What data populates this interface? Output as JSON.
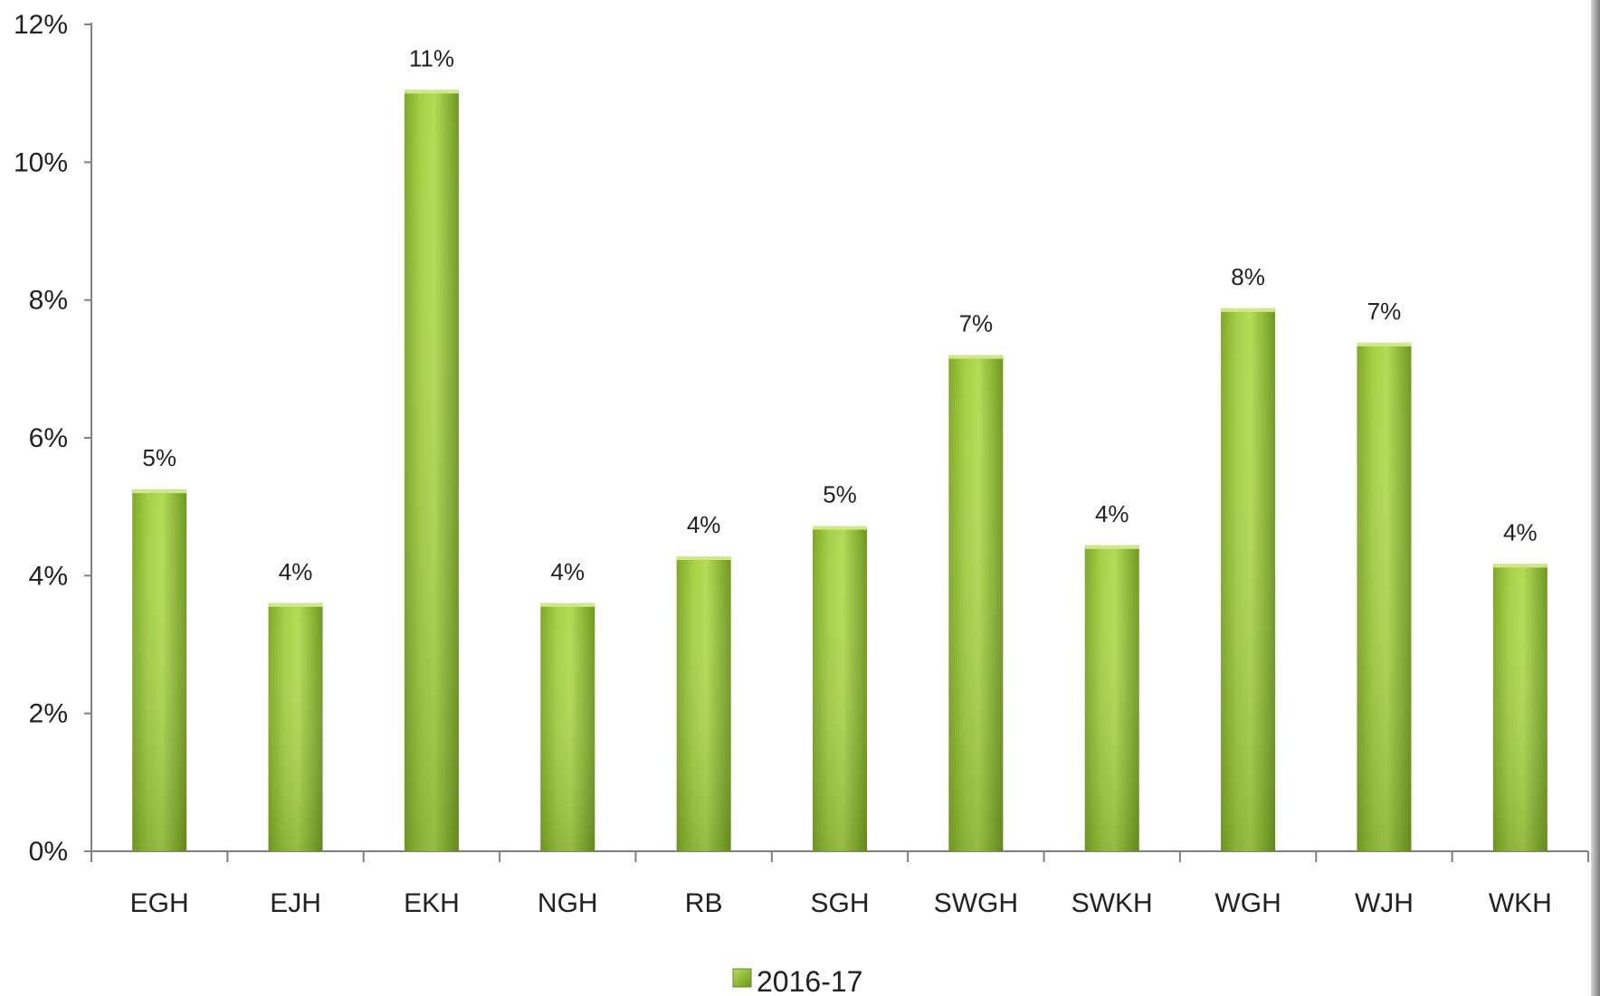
{
  "chart_data": {
    "type": "bar",
    "categories": [
      "EGH",
      "EJH",
      "EKH",
      "NGH",
      "RB",
      "SGH",
      "SWGH",
      "SWKH",
      "WGH",
      "WJH",
      "WKH"
    ],
    "series": [
      {
        "name": "2016-17",
        "values": [
          5.25,
          3.6,
          11.05,
          3.6,
          4.28,
          4.72,
          7.2,
          4.44,
          7.88,
          7.38,
          4.17
        ],
        "data_labels": [
          "5%",
          "4%",
          "11%",
          "4%",
          "4%",
          "5%",
          "7%",
          "4%",
          "8%",
          "7%",
          "4%"
        ]
      }
    ],
    "ylim": [
      0,
      12
    ],
    "yticks": [
      0,
      2,
      4,
      6,
      8,
      10,
      12
    ],
    "ytick_labels": [
      "0%",
      "2%",
      "4%",
      "6%",
      "8%",
      "10%",
      "12%"
    ],
    "grid": false,
    "legend": {
      "position": "bottom",
      "entries": [
        "2016-17"
      ]
    },
    "colors": {
      "bar_light": "#b6dc55",
      "bar_mid": "#8fbf2e",
      "bar_dark": "#5f8a1c",
      "axis": "#808080"
    }
  }
}
